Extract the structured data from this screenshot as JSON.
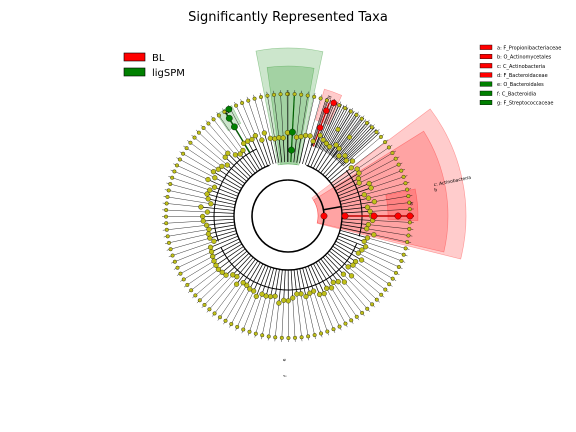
{
  "chart_data": {
    "type": "cladogram",
    "title": "Significantly Represented Taxa",
    "groups": [
      {
        "name": "BL",
        "color": "#ff0000"
      },
      {
        "name": "ligSPM",
        "color": "#008000"
      }
    ],
    "neutral_node_color": "#bfbf1a",
    "taxa_legend": [
      {
        "label": "a: F_Propionibacteriaceae",
        "color": "#ff0000"
      },
      {
        "label": "b: O_Actinomycetales",
        "color": "#ff0000"
      },
      {
        "label": "c: C_Actinobacteria",
        "color": "#ff0000"
      },
      {
        "label": "d: F_Bacteroidaceae",
        "color": "#ff0000"
      },
      {
        "label": "e: O_Bacteroidales",
        "color": "#008000"
      },
      {
        "label": "f: C_Bacteroidia",
        "color": "#008000"
      },
      {
        "label": "g: F_Streptococcaceae",
        "color": "#008000"
      }
    ],
    "highlighted_sectors": [
      {
        "letter": "c",
        "group": "BL",
        "label": "c: Actinobacteria",
        "level": "class"
      },
      {
        "letter": "b",
        "group": "BL",
        "level": "order"
      },
      {
        "letter": "a",
        "group": "BL",
        "level": "family"
      },
      {
        "letter": "d",
        "group": "BL",
        "level": "family"
      },
      {
        "letter": "f",
        "group": "ligSPM",
        "level": "class"
      },
      {
        "letter": "e",
        "group": "ligSPM",
        "level": "order"
      },
      {
        "letter": "g",
        "group": "ligSPM",
        "level": "family"
      }
    ]
  }
}
